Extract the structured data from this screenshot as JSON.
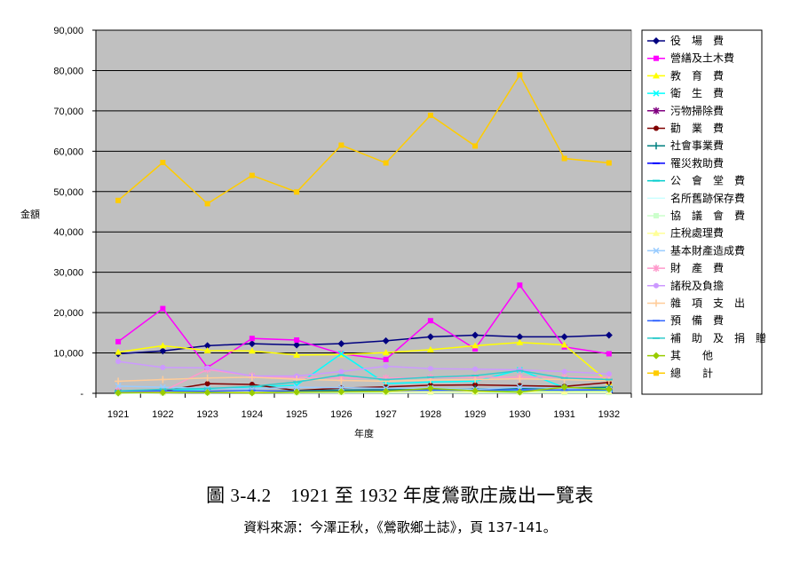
{
  "chart_data": {
    "type": "line",
    "title": "",
    "xlabel": "年度",
    "ylabel": "金額",
    "ylim": [
      0,
      90000
    ],
    "yticks": [
      "-",
      "10,000",
      "20,000",
      "30,000",
      "40,000",
      "50,000",
      "60,000",
      "70,000",
      "80,000",
      "90,000"
    ],
    "x": [
      "1921",
      "1922",
      "1923",
      "1924",
      "1925",
      "1926",
      "1927",
      "1928",
      "1929",
      "1930",
      "1931",
      "1932"
    ],
    "grid": true,
    "background": "#c0c0c0",
    "legend_position": "right",
    "series": [
      {
        "name": "役　場　費",
        "color": "#000080",
        "marker": "diamond",
        "values": [
          9800,
          10500,
          11800,
          12300,
          12000,
          12300,
          13000,
          14000,
          14400,
          14000,
          14000,
          14400
        ]
      },
      {
        "name": "營繕及土木費",
        "color": "#ff00ff",
        "marker": "square",
        "values": [
          12800,
          21000,
          6400,
          13600,
          13200,
          9800,
          8400,
          18000,
          11000,
          26800,
          11500,
          9800
        ]
      },
      {
        "name": "教　育　費",
        "color": "#ffff00",
        "marker": "triangle",
        "values": [
          10200,
          11800,
          10600,
          10500,
          9500,
          9600,
          10100,
          10800,
          11800,
          12600,
          12000,
          2700
        ]
      },
      {
        "name": "衛　生　費",
        "color": "#00ffff",
        "marker": "x",
        "values": [
          400,
          800,
          1000,
          1600,
          2000,
          9800,
          2400,
          2800,
          3000,
          5800,
          1400,
          1100
        ]
      },
      {
        "name": "污物掃除費",
        "color": "#800080",
        "marker": "star",
        "values": [
          300,
          400,
          500,
          600,
          500,
          700,
          600,
          700,
          600,
          800,
          600,
          700
        ]
      },
      {
        "name": "勸　業　費",
        "color": "#800000",
        "marker": "circle",
        "values": [
          500,
          600,
          2400,
          2200,
          700,
          1300,
          1600,
          2000,
          2100,
          1900,
          1700,
          2700
        ]
      },
      {
        "name": "社會事業費",
        "color": "#008080",
        "marker": "plus",
        "values": [
          200,
          300,
          400,
          500,
          600,
          800,
          900,
          1000,
          1100,
          1200,
          1300,
          1500
        ]
      },
      {
        "name": "罹災救助費",
        "color": "#0000ff",
        "marker": "dash",
        "values": [
          100,
          200,
          100,
          200,
          200,
          300,
          200,
          300,
          200,
          300,
          200,
          300
        ]
      },
      {
        "name": "公　會　堂　費",
        "color": "#00cccc",
        "marker": "dash",
        "values": [
          100,
          200,
          300,
          400,
          300,
          500,
          400,
          600,
          500,
          600,
          500,
          600
        ]
      },
      {
        "name": "名所舊跡保存費",
        "color": "#ccffff",
        "marker": "none",
        "values": [
          0,
          100,
          100,
          100,
          100,
          100,
          100,
          100,
          100,
          100,
          100,
          100
        ]
      },
      {
        "name": "協　議　會　費",
        "color": "#ccffcc",
        "marker": "square",
        "values": [
          100,
          100,
          200,
          200,
          200,
          200,
          200,
          200,
          200,
          200,
          200,
          200
        ]
      },
      {
        "name": "庄稅處理費",
        "color": "#ffff99",
        "marker": "triangle",
        "values": [
          300,
          300,
          400,
          400,
          400,
          400,
          400,
          400,
          400,
          400,
          400,
          400
        ]
      },
      {
        "name": "基本財產造成費",
        "color": "#99ccff",
        "marker": "x",
        "values": [
          1800,
          1500,
          1200,
          1100,
          1500,
          1400,
          1200,
          1300,
          1000,
          1500,
          1200,
          900
        ]
      },
      {
        "name": "財　產　費",
        "color": "#ff99cc",
        "marker": "star",
        "values": [
          600,
          500,
          5900,
          4300,
          3900,
          3800,
          3800,
          3900,
          4000,
          4000,
          4000,
          4000
        ]
      },
      {
        "name": "諸稅及負擔",
        "color": "#cc99ff",
        "marker": "circle",
        "values": [
          7900,
          6400,
          6300,
          4300,
          4300,
          5400,
          6700,
          6100,
          6000,
          5800,
          5400,
          4800
        ]
      },
      {
        "name": "雜　項　支　出",
        "color": "#ffcc99",
        "marker": "plus",
        "values": [
          3000,
          3400,
          3800,
          4000,
          3500,
          3200,
          3000,
          3300,
          3400,
          3600,
          3400,
          3100
        ]
      },
      {
        "name": "預　備　費",
        "color": "#3366ff",
        "marker": "dash",
        "values": [
          500,
          600,
          500,
          700,
          400,
          500,
          600,
          800,
          700,
          900,
          800,
          900
        ]
      },
      {
        "name": "補　助　及　捐　贈",
        "color": "#33cccc",
        "marker": "dash",
        "values": [
          600,
          1000,
          1200,
          1700,
          2800,
          4500,
          3400,
          4000,
          4400,
          5600,
          3800,
          3400
        ]
      },
      {
        "name": "其　　他",
        "color": "#99cc00",
        "marker": "diamond",
        "values": [
          100,
          200,
          200,
          100,
          300,
          400,
          500,
          1200,
          600,
          300,
          1500,
          1000
        ]
      },
      {
        "name": "總　　計",
        "color": "#ffcc00",
        "marker": "square",
        "values": [
          47800,
          57200,
          47000,
          54000,
          49900,
          61500,
          57100,
          68900,
          61300,
          78900,
          58200,
          57100
        ]
      }
    ]
  },
  "caption": {
    "title": "圖 3-4.2　1921 至 1932 年度鶯歌庄歲出一覽表",
    "source": "資料來源：今澤正秋，《鶯歌鄉土誌》，頁 137-141。"
  }
}
